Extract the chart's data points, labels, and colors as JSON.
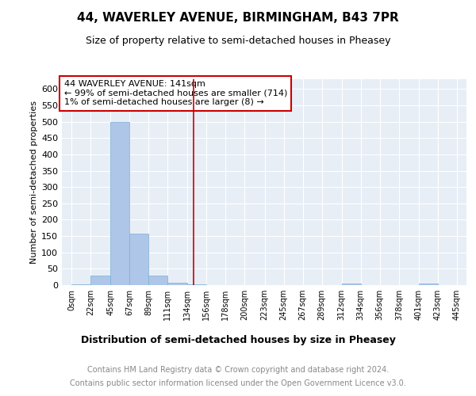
{
  "title": "44, WAVERLEY AVENUE, BIRMINGHAM, B43 7PR",
  "subtitle": "Size of property relative to semi-detached houses in Pheasey",
  "xlabel": "Distribution of semi-detached houses by size in Pheasey",
  "ylabel": "Number of semi-detached properties",
  "annotation_line1": "44 WAVERLEY AVENUE: 141sqm",
  "annotation_line2": "← 99% of semi-detached houses are smaller (714)",
  "annotation_line3": "1% of semi-detached houses are larger (8) →",
  "footer_line1": "Contains HM Land Registry data © Crown copyright and database right 2024.",
  "footer_line2": "Contains public sector information licensed under the Open Government Licence v3.0.",
  "red_line_x": 141,
  "bin_edges": [
    0,
    22,
    45,
    67,
    89,
    111,
    134,
    156,
    178,
    200,
    223,
    245,
    267,
    289,
    312,
    334,
    356,
    378,
    401,
    423,
    445
  ],
  "bar_heights": [
    3,
    30,
    500,
    158,
    30,
    8,
    3,
    0,
    0,
    0,
    0,
    0,
    0,
    0,
    6,
    0,
    0,
    0,
    5,
    0
  ],
  "ylim": [
    0,
    630
  ],
  "yticks": [
    0,
    50,
    100,
    150,
    200,
    250,
    300,
    350,
    400,
    450,
    500,
    550,
    600
  ],
  "bg_color": "#e8eef6",
  "grid_color": "#ffffff",
  "bar_color": "#aec6e8",
  "bar_edge_color": "#7aafd4",
  "annotation_box_color": "#ffffff",
  "annotation_box_edge": "#cc0000",
  "red_line_color": "#cc0000",
  "title_fontsize": 11,
  "subtitle_fontsize": 9,
  "ylabel_fontsize": 8,
  "xlabel_fontsize": 9,
  "tick_fontsize": 8,
  "xtick_fontsize": 7,
  "footer_fontsize": 7,
  "annotation_fontsize": 8
}
